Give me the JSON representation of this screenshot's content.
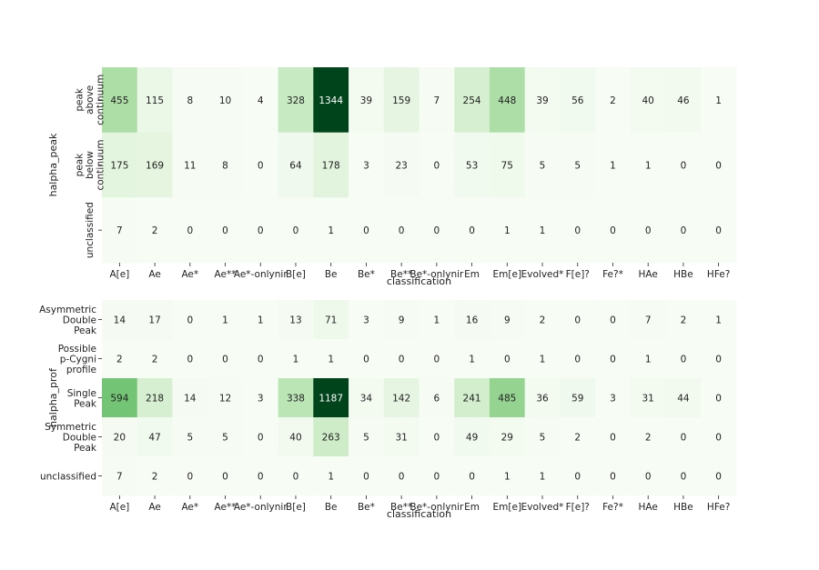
{
  "chart_data": [
    {
      "type": "heatmap",
      "title": "",
      "xlabel": "classification",
      "ylabel": "halpha_peak",
      "colormap": "Greens",
      "x_categories": [
        "A[e]",
        "Ae",
        "Ae*",
        "Ae**",
        "Ae*-onlynir",
        "B[e]",
        "Be",
        "Be*",
        "Be**",
        "Be*-onlynir",
        "Em",
        "Em[e]",
        "Evolved*",
        "F[e]?",
        "Fe?*",
        "HAe",
        "HBe",
        "HFe?"
      ],
      "rows": [
        {
          "label_lines": [
            "peak",
            "above",
            "continuum"
          ],
          "values": [
            455,
            115,
            8,
            10,
            4,
            328,
            1344,
            39,
            159,
            7,
            254,
            448,
            39,
            56,
            2,
            40,
            46,
            1
          ]
        },
        {
          "label_lines": [
            "peak",
            "below",
            "continuum"
          ],
          "values": [
            175,
            169,
            11,
            8,
            0,
            64,
            178,
            3,
            23,
            0,
            53,
            75,
            5,
            5,
            1,
            1,
            0,
            0
          ]
        },
        {
          "label_lines": [
            "unclassified"
          ],
          "values": [
            7,
            2,
            0,
            0,
            0,
            0,
            1,
            0,
            0,
            0,
            0,
            1,
            1,
            0,
            0,
            0,
            0,
            0
          ]
        }
      ]
    },
    {
      "type": "heatmap",
      "title": "",
      "xlabel": "classification",
      "ylabel": "halpha_prof",
      "colormap": "Greens",
      "x_categories": [
        "A[e]",
        "Ae",
        "Ae*",
        "Ae**",
        "Ae*-onlynir",
        "B[e]",
        "Be",
        "Be*",
        "Be**",
        "Be*-onlynir",
        "Em",
        "Em[e]",
        "Evolved*",
        "F[e]?",
        "Fe?*",
        "HAe",
        "HBe",
        "HFe?"
      ],
      "rows": [
        {
          "label_lines": [
            "Asymmetric",
            "Double",
            "Peak"
          ],
          "values": [
            14,
            17,
            0,
            1,
            1,
            13,
            71,
            3,
            9,
            1,
            16,
            9,
            2,
            0,
            0,
            7,
            2,
            1
          ]
        },
        {
          "label_lines": [
            "Possible",
            "p-Cygni",
            "profile"
          ],
          "values": [
            2,
            2,
            0,
            0,
            0,
            1,
            1,
            0,
            0,
            0,
            1,
            0,
            1,
            0,
            0,
            1,
            0,
            0
          ]
        },
        {
          "label_lines": [
            "Single",
            "Peak"
          ],
          "values": [
            594,
            218,
            14,
            12,
            3,
            338,
            1187,
            34,
            142,
            6,
            241,
            485,
            36,
            59,
            3,
            31,
            44,
            0
          ]
        },
        {
          "label_lines": [
            "Symmetric",
            "Double",
            "Peak"
          ],
          "values": [
            20,
            47,
            5,
            5,
            0,
            40,
            263,
            5,
            31,
            0,
            49,
            29,
            5,
            2,
            0,
            2,
            0,
            0
          ]
        },
        {
          "label_lines": [
            "unclassified"
          ],
          "values": [
            7,
            2,
            0,
            0,
            0,
            0,
            1,
            0,
            0,
            0,
            0,
            1,
            1,
            0,
            0,
            0,
            0,
            0
          ]
        }
      ]
    }
  ]
}
